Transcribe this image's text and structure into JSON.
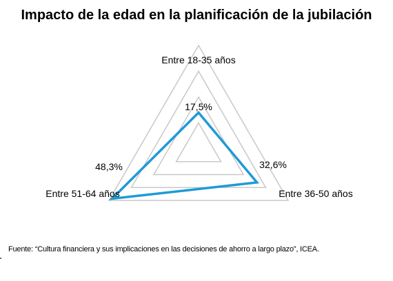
{
  "chart_data": {
    "type": "radar",
    "title": "Impacto de la edad en la planificación de la jubilación",
    "categories": [
      "Entre 18-35 años",
      "Entre 36-50 años",
      "Entre 51-64 años"
    ],
    "series": [
      {
        "values": [
          17.5,
          32.6,
          48.3
        ],
        "labels": [
          "17,5%",
          "32,6%",
          "48,3%"
        ],
        "color": "#1f9ad6"
      }
    ],
    "rmax": 50,
    "gridlines": 4,
    "grid_color": "#c8c8c8"
  },
  "source_note": "Fuente: “Cultura financiera y  sus implicaciones en las decisiones de ahorro a largo plazo”, ICEA."
}
